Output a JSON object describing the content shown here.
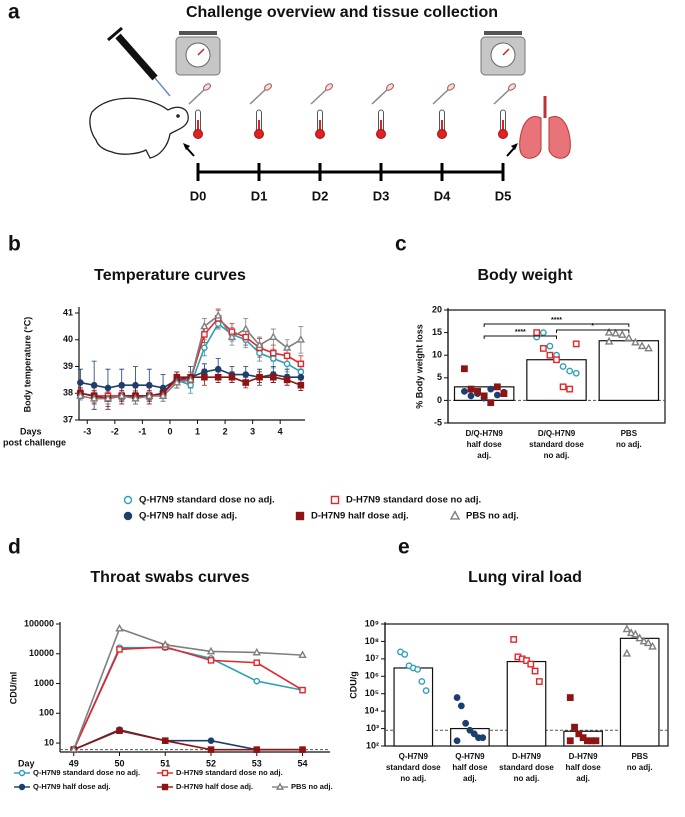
{
  "chart_data": [
    {
      "type": "timeline",
      "panel": "a",
      "title": "Challenge overview and tissue collection",
      "categories": [
        "D0",
        "D1",
        "D2",
        "D3",
        "D4",
        "D5"
      ]
    },
    {
      "type": "line",
      "panel": "b",
      "title": "Temperature curves",
      "ylabel": "Body temperature (°C)",
      "xlabel": [
        "Days",
        "post challenge"
      ],
      "x": [
        -3.25,
        -2.75,
        -2.25,
        -1.75,
        -1.25,
        -0.75,
        -0.25,
        0.25,
        0.75,
        1.25,
        1.75,
        2.25,
        2.75,
        3.25,
        3.75,
        4.25,
        4.75
      ],
      "xlim": [
        -3.3,
        4.9
      ],
      "xticks": [
        -3,
        -2,
        -1,
        0,
        1,
        2,
        3,
        4
      ],
      "ylim": [
        37,
        41.15
      ],
      "yticks": [
        37,
        38,
        39,
        40,
        41
      ],
      "series": [
        {
          "name": "Q-H7N9 standard dose no adj.",
          "color": "#2b9fb3",
          "marker": "circle",
          "filled": false,
          "values": [
            38.0,
            37.9,
            37.8,
            37.9,
            37.9,
            37.9,
            38.0,
            38.5,
            38.3,
            39.7,
            40.6,
            40.2,
            40.0,
            39.5,
            39.3,
            39.1,
            38.8
          ],
          "errors": [
            0.2,
            0.15,
            0.2,
            0.15,
            0.2,
            0.15,
            0.2,
            0.3,
            0.3,
            0.3,
            0.2,
            0.25,
            0.3,
            0.3,
            0.35,
            0.3,
            0.3
          ]
        },
        {
          "name": "D-H7N9 standard dose no adj.",
          "color": "#e3262b",
          "marker": "square",
          "filled": false,
          "values": [
            38.0,
            37.9,
            37.9,
            37.9,
            37.9,
            37.9,
            38.0,
            38.5,
            38.5,
            40.2,
            40.8,
            40.3,
            40.1,
            39.7,
            39.5,
            39.4,
            39.1
          ],
          "errors": [
            0.15,
            0.2,
            0.15,
            0.2,
            0.15,
            0.2,
            0.2,
            0.3,
            0.3,
            0.3,
            0.35,
            0.3,
            0.3,
            0.35,
            0.3,
            0.3,
            0.3
          ]
        },
        {
          "name": "Q-H7N9 half dose adj.",
          "color": "#1c3f6e",
          "marker": "circle",
          "filled": true,
          "values": [
            38.4,
            38.3,
            38.2,
            38.3,
            38.3,
            38.3,
            38.2,
            38.5,
            38.6,
            38.8,
            38.9,
            38.7,
            38.7,
            38.6,
            38.7,
            38.6,
            38.6
          ],
          "errors": [
            0.5,
            0.9,
            0.7,
            0.6,
            0.7,
            0.6,
            0.5,
            0.3,
            0.4,
            0.3,
            0.4,
            0.3,
            0.3,
            0.3,
            0.3,
            0.3,
            0.3
          ]
        },
        {
          "name": "D-H7N9 half dose adj.",
          "color": "#8e1414",
          "marker": "square",
          "filled": true,
          "values": [
            38.0,
            37.9,
            37.8,
            37.9,
            37.9,
            37.9,
            38.0,
            38.6,
            38.6,
            38.6,
            38.6,
            38.6,
            38.4,
            38.6,
            38.6,
            38.5,
            38.3
          ],
          "errors": [
            0.2,
            0.3,
            0.4,
            0.3,
            0.3,
            0.3,
            0.2,
            0.2,
            0.2,
            0.3,
            0.2,
            0.2,
            0.2,
            0.2,
            0.2,
            0.2,
            0.2
          ]
        },
        {
          "name": "PBS no adj.",
          "color": "#7f7f7f",
          "marker": "triangle",
          "filled": false,
          "values": [
            37.9,
            37.8,
            37.8,
            37.9,
            37.8,
            37.9,
            37.9,
            38.4,
            38.5,
            40.5,
            40.9,
            40.1,
            40.4,
            39.8,
            40.1,
            39.7,
            40.0
          ],
          "errors": [
            0.15,
            0.15,
            0.2,
            0.15,
            0.2,
            0.15,
            0.2,
            0.2,
            0.3,
            0.3,
            0.2,
            0.3,
            0.4,
            0.3,
            0.3,
            0.3,
            0.5
          ]
        }
      ]
    },
    {
      "type": "bar",
      "panel": "c",
      "title": "Body weight",
      "ylabel": "% Body weight loss",
      "categories": [
        [
          "D/Q-H7N9",
          "half dose",
          "adj."
        ],
        [
          "D/Q-H7N9",
          "standard dose",
          "no adj."
        ],
        [
          "PBS",
          "no adj."
        ]
      ],
      "values": [
        3.0,
        9.0,
        13.2
      ],
      "ylim": [
        -5,
        20
      ],
      "yticks": [
        -5,
        0,
        5,
        10,
        15,
        20
      ],
      "reference_line": 0,
      "point_groups": [
        {
          "color": "#1c3f6e",
          "marker": "circle",
          "filled": true,
          "values": [
            [
              2.0,
              1.0,
              1.5,
              0.5,
              2.5,
              1.2,
              1.8
            ],
            [],
            []
          ]
        },
        {
          "color": "#8e1414",
          "marker": "square",
          "filled": true,
          "values": [
            [
              7.0,
              2.5,
              2.0,
              1.0,
              -0.5,
              3.0,
              1.5
            ],
            [],
            []
          ]
        },
        {
          "color": "#2b9fb3",
          "marker": "circle",
          "filled": false,
          "values": [
            [],
            [
              14.0,
              15.0,
              12.0,
              10.0,
              7.5,
              6.5,
              6.0
            ],
            []
          ]
        },
        {
          "color": "#e3262b",
          "marker": "square",
          "filled": false,
          "values": [
            [],
            [
              15.0,
              11.5,
              10.0,
              9.0,
              3.0,
              2.5,
              12.5
            ],
            []
          ]
        },
        {
          "color": "#7f7f7f",
          "marker": "triangle",
          "filled": false,
          "values": [
            [],
            [],
            [
              15.0,
              14.8,
              14.5,
              13.8,
              12.8,
              12.0,
              11.5,
              13.0
            ]
          ]
        }
      ],
      "significance": [
        {
          "from": 0,
          "to": 2,
          "label": "****"
        },
        {
          "from": 1,
          "to": 2,
          "label": "*"
        },
        {
          "from": 0,
          "to": 1,
          "label": "****"
        }
      ]
    },
    {
      "type": "line",
      "panel": "d",
      "title": "Throat swabs curves",
      "ylabel": "CDU/ml",
      "xlabel": "Day",
      "log_y": true,
      "x": [
        49,
        50,
        51,
        52,
        53,
        54
      ],
      "xlim": [
        48.7,
        54.6
      ],
      "xticks": [
        49,
        50,
        51,
        52,
        53,
        54
      ],
      "ylim": [
        5,
        100000
      ],
      "yticks": [
        10,
        100,
        1000,
        10000,
        100000
      ],
      "reference_line": 6,
      "series": [
        {
          "name": "Q-H7N9 standard dose no adj.",
          "color": "#2b9fb3",
          "marker": "circle",
          "filled": false,
          "values": [
            6,
            16000,
            16000,
            7000,
            1200,
            600
          ]
        },
        {
          "name": "D-H7N9 standard dose no adj.",
          "color": "#e3262b",
          "marker": "square",
          "filled": false,
          "values": [
            6,
            14000,
            17000,
            6000,
            5000,
            600
          ]
        },
        {
          "name": "Q-H7N9 half dose adj.",
          "color": "#1c3f6e",
          "marker": "circle",
          "filled": true,
          "values": [
            6,
            28,
            12,
            12,
            6,
            6
          ]
        },
        {
          "name": "D-H7N9 half dose adj.",
          "color": "#8e1414",
          "marker": "square",
          "filled": true,
          "values": [
            6,
            26,
            12,
            6,
            6,
            6
          ]
        },
        {
          "name": "PBS no adj.",
          "color": "#7f7f7f",
          "marker": "triangle",
          "filled": false,
          "values": [
            6,
            70000,
            20000,
            12000,
            11000,
            9000
          ]
        }
      ]
    },
    {
      "type": "bar",
      "panel": "e",
      "title": "Lung viral load",
      "ylabel": "CDU/g",
      "log_y": true,
      "categories": [
        [
          "Q-H7N9",
          "standard dose",
          "no adj."
        ],
        [
          "Q-H7N9",
          "half dose",
          "adj."
        ],
        [
          "D-H7N9",
          "standard dose",
          "no adj."
        ],
        [
          "D-H7N9",
          "half dose",
          "adj."
        ],
        [
          "PBS",
          "no adj."
        ]
      ],
      "values": [
        3000000,
        1000,
        7000000,
        700,
        150000000
      ],
      "ylim": [
        100,
        1000000000
      ],
      "yticks": [
        {
          "value": 100,
          "label": "10²"
        },
        {
          "value": 1000,
          "label": "10³"
        },
        {
          "value": 10000,
          "label": "10⁴"
        },
        {
          "value": 100000,
          "label": "10⁵"
        },
        {
          "value": 1000000,
          "label": "10⁶"
        },
        {
          "value": 10000000,
          "label": "10⁷"
        },
        {
          "value": 100000000,
          "label": "10⁸"
        },
        {
          "value": 1000000000,
          "label": "10⁹"
        }
      ],
      "reference_line": 800,
      "point_groups": [
        {
          "color": "#2b9fb3",
          "marker": "circle",
          "filled": false,
          "values": [
            [
              25000000,
              18000000,
              4000000,
              3000000,
              2500000,
              500000,
              150000
            ],
            [],
            [],
            [],
            []
          ]
        },
        {
          "color": "#1c3f6e",
          "marker": "circle",
          "filled": true,
          "values": [
            [],
            [
              60000,
              20000,
              2000,
              800,
              500,
              300,
              300,
              200
            ],
            [],
            [],
            []
          ]
        },
        {
          "color": "#e3262b",
          "marker": "square",
          "filled": false,
          "values": [
            [],
            [],
            [
              130000000,
              13000000,
              10000000,
              8000000,
              5000000,
              2000000,
              500000
            ],
            [],
            []
          ]
        },
        {
          "color": "#8e1414",
          "marker": "square",
          "filled": true,
          "values": [
            [],
            [],
            [],
            [
              60000,
              1200,
              500,
              300,
              200,
              200,
              200,
              200
            ],
            []
          ]
        },
        {
          "color": "#7f7f7f",
          "marker": "triangle",
          "filled": false,
          "values": [
            [],
            [],
            [],
            [],
            [
              500000000,
              300000000,
              250000000,
              150000000,
              100000000,
              80000000,
              50000000,
              20000000
            ]
          ]
        }
      ]
    }
  ]
}
